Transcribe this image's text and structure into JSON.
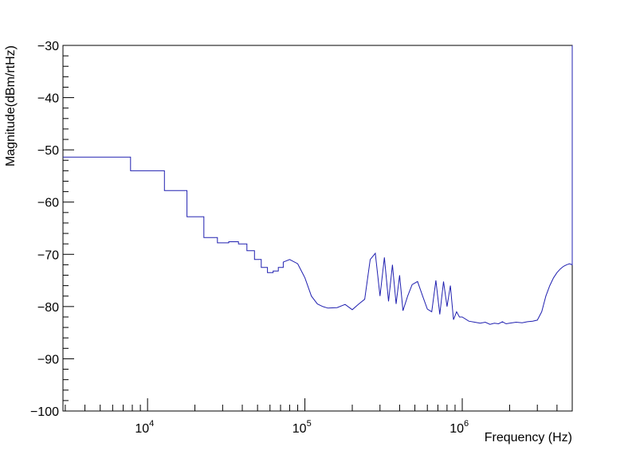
{
  "chart_data": {
    "type": "line",
    "title": "",
    "xlabel": "Frequency (Hz)",
    "ylabel": "Magnitude(dBm/rtHz)",
    "x_scale": "log",
    "xlim": [
      2900,
      5000000
    ],
    "ylim": [
      -100,
      -30
    ],
    "grid": false,
    "line_color": "#2020b0",
    "y_ticks": [
      {
        "value": -30,
        "label": "−30"
      },
      {
        "value": -40,
        "label": "−40"
      },
      {
        "value": -50,
        "label": "−50"
      },
      {
        "value": -60,
        "label": "−60"
      },
      {
        "value": -70,
        "label": "−70"
      },
      {
        "value": -80,
        "label": "−80"
      },
      {
        "value": -90,
        "label": "−90"
      },
      {
        "value": -100,
        "label": "−100"
      }
    ],
    "x_ticks": [
      {
        "value": 10000,
        "base": "10",
        "exp": "4"
      },
      {
        "value": 100000,
        "base": "10",
        "exp": "5"
      },
      {
        "value": 1000000,
        "base": "10",
        "exp": "6"
      }
    ],
    "series": [
      {
        "x": [
          2900,
          7800,
          7800,
          12800,
          12800,
          17800,
          17800,
          22800,
          22800,
          27800,
          27800,
          32800,
          32800,
          37800,
          37800,
          42800,
          42800,
          47800,
          47800,
          52800,
          52800,
          57800,
          57800,
          62800,
          62800,
          67800,
          67800,
          72800,
          72800,
          80000,
          90000,
          100000,
          110000,
          120000,
          130000,
          140000,
          160000,
          180000,
          200000,
          220000,
          240000,
          260000,
          280000,
          300000,
          320000,
          340000,
          360000,
          380000,
          400000,
          420000,
          450000,
          480000,
          520000,
          560000,
          600000,
          640000,
          680000,
          720000,
          760000,
          800000,
          840000,
          880000,
          920000,
          960000,
          1000000,
          1100000,
          1200000,
          1300000,
          1400000,
          1500000,
          1600000,
          1700000,
          1800000,
          1900000,
          2000000,
          2200000,
          2400000,
          2600000,
          2800000,
          3000000,
          3200000,
          3400000,
          3600000,
          3800000,
          4000000,
          4200000,
          4400000,
          4600000,
          4800000,
          5000000
        ],
        "y": [
          -51.4,
          -51.4,
          -54.0,
          -54.0,
          -57.8,
          -57.8,
          -62.8,
          -62.8,
          -66.8,
          -66.8,
          -67.8,
          -67.8,
          -67.6,
          -67.6,
          -68.0,
          -68.0,
          -69.3,
          -69.3,
          -71.0,
          -71.0,
          -72.5,
          -72.5,
          -73.5,
          -73.5,
          -73.2,
          -73.2,
          -72.5,
          -72.5,
          -71.5,
          -71.0,
          -71.8,
          -74.5,
          -78.0,
          -79.5,
          -80.0,
          -80.3,
          -80.2,
          -79.6,
          -80.6,
          -79.5,
          -78.6,
          -71.0,
          -69.8,
          -78.0,
          -70.6,
          -79.0,
          -72.0,
          -79.5,
          -74.0,
          -80.8,
          -78.0,
          -75.8,
          -75.2,
          -78.0,
          -80.5,
          -81.0,
          -75.0,
          -81.5,
          -75.2,
          -80.0,
          -76.0,
          -82.5,
          -81.0,
          -82.0,
          -82.0,
          -82.8,
          -83.0,
          -83.2,
          -83.0,
          -83.4,
          -83.2,
          -83.3,
          -82.9,
          -83.3,
          -83.2,
          -83.0,
          -83.1,
          -82.9,
          -82.8,
          -82.6,
          -81.0,
          -78.0,
          -76.0,
          -74.5,
          -73.5,
          -72.8,
          -72.3,
          -72.0,
          -71.8,
          -72.0
        ]
      }
    ]
  }
}
